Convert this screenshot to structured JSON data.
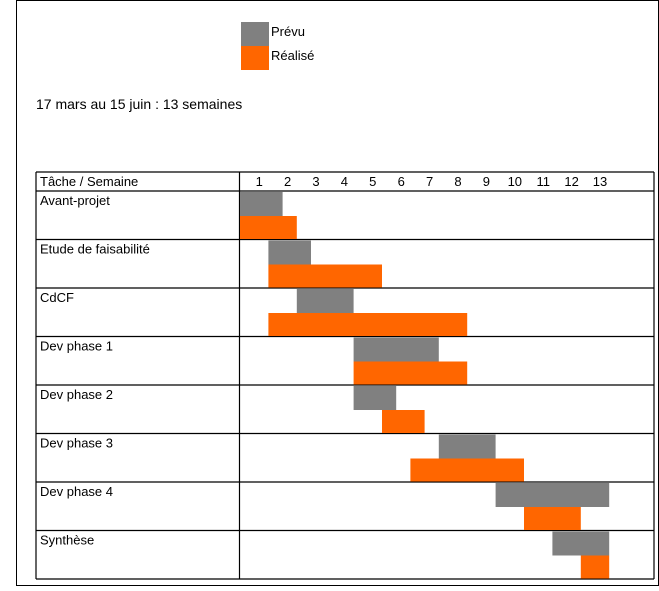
{
  "legend": {
    "planned_label": "Prévu",
    "actual_label": "Réalisé",
    "planned_color": "#808080",
    "actual_color": "#ff6600"
  },
  "subtitle": "17 mars au 15 juin : 13 semaines",
  "table": {
    "header_label": "Tâche / Semaine"
  },
  "chart_data": {
    "type": "gantt",
    "weeks": [
      "1",
      "2",
      "3",
      "4",
      "5",
      "6",
      "7",
      "8",
      "9",
      "10",
      "11",
      "12",
      "13"
    ],
    "tasks": [
      {
        "name": "Avant-projet",
        "planned": [
          1,
          1.5
        ],
        "actual": [
          1,
          2
        ]
      },
      {
        "name": "Etude de faisabilité",
        "planned": [
          2,
          2.5
        ],
        "actual": [
          2,
          5
        ]
      },
      {
        "name": "CdCF",
        "planned": [
          3,
          4
        ],
        "actual": [
          2,
          8
        ]
      },
      {
        "name": "Dev phase 1",
        "planned": [
          5,
          7
        ],
        "actual": [
          5,
          8
        ]
      },
      {
        "name": "Dev phase 2",
        "planned": [
          5,
          5.5
        ],
        "actual": [
          6,
          6.5
        ]
      },
      {
        "name": "Dev phase 3",
        "planned": [
          8,
          9
        ],
        "actual": [
          7,
          10
        ]
      },
      {
        "name": "Dev phase 4",
        "planned": [
          10,
          13
        ],
        "actual": [
          11,
          12
        ]
      },
      {
        "name": "Synthèse",
        "planned": [
          12,
          13
        ],
        "actual": [
          13,
          13
        ]
      }
    ]
  }
}
